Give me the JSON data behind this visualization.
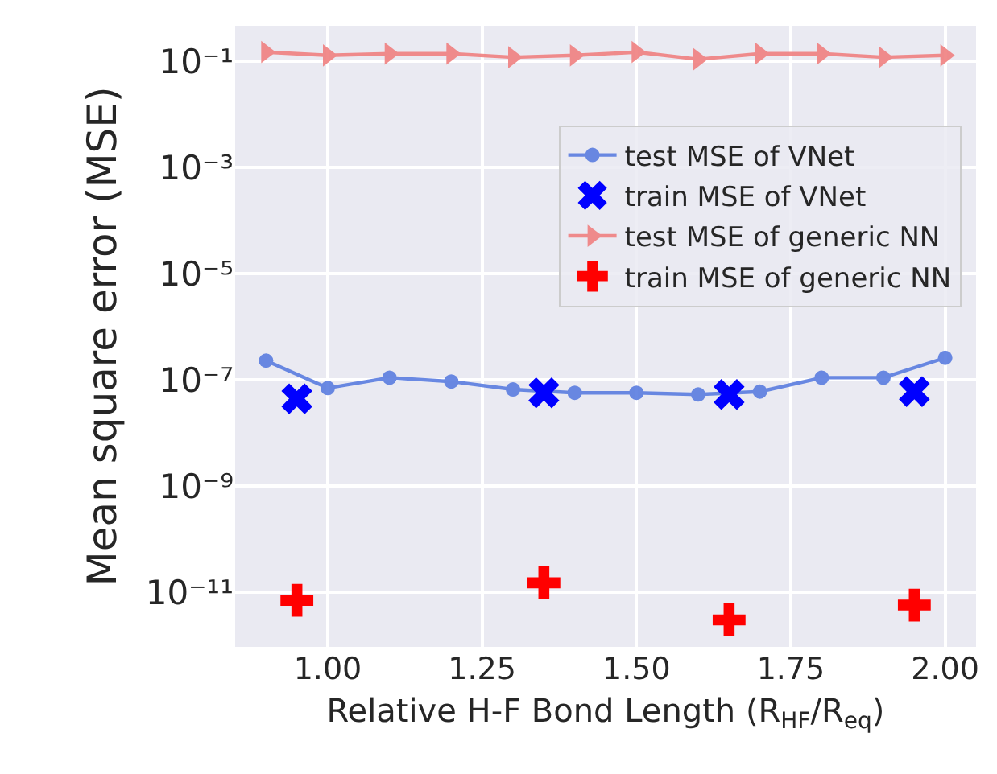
{
  "chart_data": {
    "type": "line",
    "xlabel": "Relative H-F Bond Length (R$_{HF}$/R$_{eq}$)",
    "ylabel": "Mean square error (MSE)",
    "log": "y",
    "xlim": [
      0.85,
      2.05
    ],
    "xticks": [
      {
        "value": 1,
        "label": "1.00"
      },
      {
        "value": 1.25,
        "label": "1.25"
      },
      {
        "value": 1.5,
        "label": "1.50"
      },
      {
        "value": 1.75,
        "label": "1.75"
      },
      {
        "value": 2,
        "label": "2.00"
      }
    ],
    "ylim": [
      9.3e-13,
      0.47
    ],
    "yticks": [
      {
        "value": 1e-11,
        "label": "10⁻¹¹"
      },
      {
        "value": 1e-09,
        "label": "10⁻⁹"
      },
      {
        "value": 1e-07,
        "label": "10⁻⁷"
      },
      {
        "value": 1e-05,
        "label": "10⁻⁵"
      },
      {
        "value": 0.001,
        "label": "10⁻³"
      },
      {
        "value": 0.1,
        "label": "10⁻¹"
      }
    ],
    "grid": true,
    "legend": "top right",
    "series": [
      {
        "name": "test MSE of VNet",
        "type": "line",
        "marker": "circle",
        "color": "#5a7de0",
        "x": [
          0.9,
          1.0,
          1.1,
          1.2,
          1.3,
          1.4,
          1.5,
          1.6,
          1.7,
          1.8,
          1.9,
          2.0
        ],
        "values": [
          2.3e-07,
          7e-08,
          1.1e-07,
          9.3e-08,
          6.6e-08,
          5.7e-08,
          5.7e-08,
          5.3e-08,
          6e-08,
          1.1e-07,
          1.1e-07,
          2.6e-07
        ]
      },
      {
        "name": "train MSE of VNet",
        "type": "scatter",
        "marker": "cross",
        "color": "#0000ff",
        "x": [
          0.95,
          1.35,
          1.65,
          1.95
        ],
        "values": [
          4.4e-08,
          5.7e-08,
          5.3e-08,
          6e-08
        ]
      },
      {
        "name": "test MSE of generic NN",
        "type": "line",
        "marker": "triangle",
        "color": "#f08080",
        "x": [
          0.9,
          1.0,
          1.1,
          1.2,
          1.3,
          1.4,
          1.5,
          1.6,
          1.7,
          1.8,
          1.9,
          2.0
        ],
        "values": [
          0.15,
          0.13,
          0.14,
          0.14,
          0.12,
          0.13,
          0.15,
          0.11,
          0.14,
          0.14,
          0.12,
          0.13
        ]
      },
      {
        "name": "train MSE of generic NN",
        "type": "scatter",
        "marker": "cross",
        "color": "#ff0000",
        "x": [
          0.95,
          1.35,
          1.65,
          1.95
        ],
        "values": [
          7e-12,
          1.5e-11,
          3e-12,
          5.7e-12
        ]
      }
    ]
  }
}
